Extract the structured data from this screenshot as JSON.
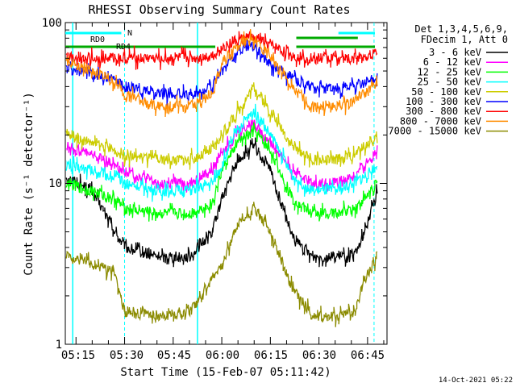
{
  "chart_data": {
    "type": "line",
    "title": "RHESSI Observing Summary Count Rates",
    "xlabel": "Start Time (15-Feb-07 05:11:42)",
    "ylabel": "Count Rate (s⁻¹ detector⁻¹)",
    "xscale": "time",
    "yscale": "log",
    "xlim": [
      "05:11",
      "06:51"
    ],
    "ylim": [
      1,
      100
    ],
    "x_ticks": [
      "05:15",
      "05:30",
      "05:45",
      "06:00",
      "06:15",
      "06:30",
      "06:45"
    ],
    "y_ticks": [
      "1",
      "10",
      "100"
    ],
    "legend": {
      "placement": "right",
      "header": [
        "Det 1,3,4,5,6,9,",
        "FDecim 1, Att 0"
      ],
      "entries": [
        {
          "label": "3 - 6 keV",
          "color": "#000000"
        },
        {
          "label": "6 - 12 keV",
          "color": "#ff00ff"
        },
        {
          "label": "12 - 25 keV",
          "color": "#00ff00"
        },
        {
          "label": "25 - 50 keV",
          "color": "#00ffff"
        },
        {
          "label": "50 - 100 keV",
          "color": "#cccc00"
        },
        {
          "label": "100 - 300 keV",
          "color": "#0000ff"
        },
        {
          "label": "300 - 800 keV",
          "color": "#ff0000"
        },
        {
          "label": "800 - 7000 keV",
          "color": "#ff8c00"
        },
        {
          "label": "7000 - 15000 keV",
          "color": "#8b8b00"
        }
      ]
    },
    "flags": [
      {
        "label": "RD0",
        "color": "#00aa00"
      },
      {
        "label": "RD4",
        "color": "#00aa00"
      },
      {
        "label": "N",
        "color": "#00ffff"
      }
    ],
    "x": [
      "05:12",
      "05:20",
      "05:27",
      "05:30",
      "05:40",
      "05:50",
      "05:57",
      "06:00",
      "06:05",
      "06:10",
      "06:15",
      "06:22",
      "06:28",
      "06:35",
      "06:41",
      "06:44",
      "06:48"
    ],
    "series": [
      {
        "name": "3 - 6 keV",
        "color": "#000000",
        "values": [
          11,
          9,
          5,
          4,
          3.5,
          3.5,
          5,
          8,
          14,
          17,
          12,
          4.5,
          3.5,
          3.5,
          3.5,
          5,
          9
        ]
      },
      {
        "name": "6 - 12 keV",
        "color": "#ff00ff",
        "values": [
          17,
          15,
          13,
          12,
          10,
          10,
          12,
          16,
          21,
          24,
          18,
          12,
          10,
          10,
          11,
          13,
          16
        ]
      },
      {
        "name": "12 - 25 keV",
        "color": "#00ff00",
        "values": [
          10,
          9,
          8,
          7,
          6.5,
          6.5,
          7.5,
          12,
          18,
          21,
          16,
          8,
          6.5,
          6.5,
          7,
          8,
          10
        ]
      },
      {
        "name": "25 - 50 keV",
        "color": "#00ffff",
        "values": [
          13,
          12,
          11,
          10,
          9,
          9,
          10,
          13,
          22,
          28,
          20,
          11,
          9,
          9,
          10,
          11,
          13
        ]
      },
      {
        "name": "50 - 100 keV",
        "color": "#cccc00",
        "values": [
          20,
          18,
          16,
          15,
          14,
          14,
          16,
          20,
          28,
          40,
          28,
          17,
          14,
          14,
          15,
          17,
          19
        ]
      },
      {
        "name": "100 - 300 keV",
        "color": "#0000ff",
        "values": [
          52,
          48,
          44,
          40,
          36,
          36,
          40,
          50,
          68,
          72,
          55,
          45,
          40,
          38,
          40,
          42,
          46
        ]
      },
      {
        "name": "300 - 800 keV",
        "color": "#ff0000",
        "values": [
          62,
          60,
          60,
          60,
          60,
          60,
          62,
          70,
          78,
          82,
          72,
          62,
          60,
          60,
          60,
          62,
          64
        ]
      },
      {
        "name": "800 - 7000 keV",
        "color": "#ff8c00",
        "values": [
          58,
          50,
          42,
          36,
          30,
          30,
          36,
          55,
          75,
          78,
          62,
          38,
          30,
          30,
          33,
          36,
          42
        ]
      },
      {
        "name": "7000 - 15000 keV",
        "color": "#8b8b00",
        "values": [
          3.5,
          3.2,
          2.8,
          1.6,
          1.5,
          1.6,
          2.5,
          3.2,
          5.5,
          7,
          5,
          2.2,
          1.5,
          1.5,
          1.6,
          2.5,
          3.5
        ]
      }
    ]
  },
  "footer": {
    "timestamp": "14-Oct-2021 05:22"
  }
}
